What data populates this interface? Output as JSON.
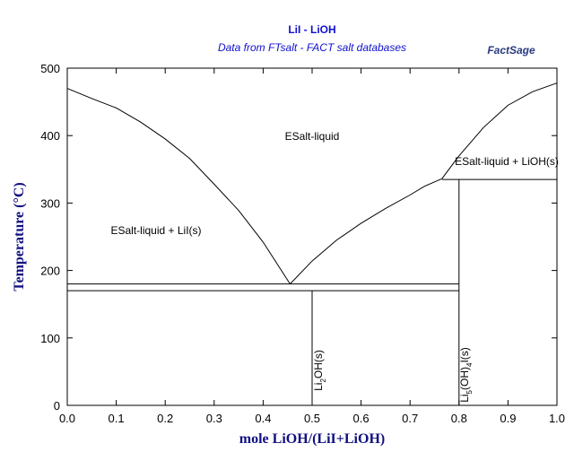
{
  "chart_data": {
    "type": "line",
    "title": "LiI - LiOH",
    "subtitle": "Data from FTsalt - FACT salt databases",
    "logo": "FactSage",
    "x_label": "mole LiOH/(LiI+LiOH)",
    "y_label": "Temperature (°C)",
    "xlim": [
      0,
      1
    ],
    "ylim": [
      0,
      500
    ],
    "xticks": [
      {
        "value": 0,
        "label": "0.0"
      },
      0.1,
      0.2,
      0.3,
      0.4,
      0.5,
      0.6,
      0.7,
      0.8,
      0.9,
      {
        "value": 1,
        "label": "1.0"
      }
    ],
    "yticks": [
      0,
      100,
      200,
      300,
      400,
      500
    ],
    "series": [
      {
        "color": "#000000",
        "x": [
          0,
          0.05,
          0.1,
          0.15,
          0.2,
          0.25,
          0.3,
          0.35,
          0.4,
          0.455
        ],
        "values": [
          470,
          455,
          441,
          420,
          395,
          366,
          328,
          289,
          242,
          180
        ]
      },
      {
        "color": "#000000",
        "x": [
          0.455,
          0.5,
          0.55,
          0.6,
          0.65,
          0.7,
          0.73,
          0.765
        ],
        "values": [
          180,
          214,
          245,
          270,
          292,
          312,
          325,
          336
        ]
      },
      {
        "color": "#000000",
        "x": [
          0.765,
          0.8,
          0.85,
          0.9,
          0.95,
          1
        ],
        "values": [
          336,
          370,
          412,
          445,
          465,
          478
        ]
      },
      {
        "color": "#000000",
        "x": [
          0,
          0.8
        ],
        "values": [
          180,
          180
        ]
      },
      {
        "color": "#000000",
        "x": [
          0,
          0.8
        ],
        "values": [
          170,
          170
        ]
      },
      {
        "color": "#000000",
        "x": [
          0.765,
          1
        ],
        "values": [
          335,
          335
        ]
      },
      {
        "color": "#000000",
        "x": [
          0.5,
          0.5
        ],
        "values": [
          170,
          0
        ]
      },
      {
        "color": "#000000",
        "x": [
          0.8,
          0.8
        ],
        "values": [
          335,
          0
        ]
      }
    ],
    "annotations": [
      {
        "parts": [
          "ESalt-liquid"
        ]
      },
      {
        "parts": [
          "ESalt-liquid + LiOH(s)"
        ]
      },
      {
        "parts": [
          "ESalt-liquid + LiI(s)"
        ]
      },
      {
        "parts": [
          "Li",
          "2",
          "OH(s)"
        ]
      },
      {
        "parts": [
          "Li",
          "5",
          "(OH)",
          "4",
          "I(s)"
        ]
      }
    ]
  }
}
